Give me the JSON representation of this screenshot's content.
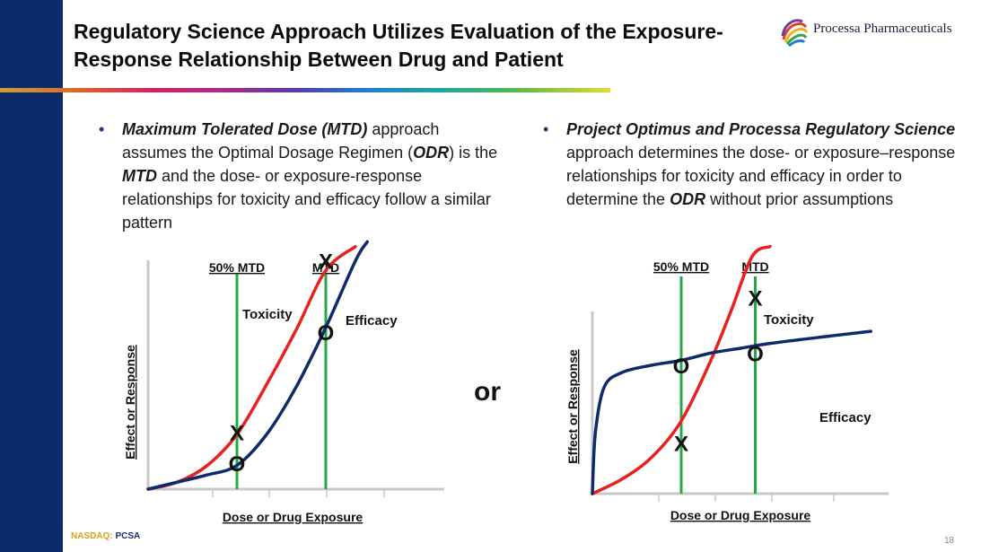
{
  "slide": {
    "title_line1": "Regulatory Science Approach Utilizes Evaluation of the Exposure-",
    "title_line2": "Response Relationship Between Drug and Patient",
    "logo_text": "Processa Pharmaceuticals",
    "or_label": "or",
    "page_number": "18",
    "footer": {
      "exchange": "NASDAQ:",
      "ticker": "PCSA"
    }
  },
  "colors": {
    "navy": "#0d2a6b",
    "toxicity": "#e8201e",
    "efficacy": "#0d2a6b",
    "marker_line": "#22a845"
  },
  "left_bullet": {
    "p1": "Maximum Tolerated Dose (MTD)",
    "p2": " approach assumes the Optimal Dosage Regimen (",
    "p3": "ODR",
    "p4": ") is the ",
    "p5": "MTD",
    "p6": " and the dose- or exposure-response relationships for toxicity and efficacy follow a similar pattern"
  },
  "right_bullet": {
    "p1": "Project Optimus and Processa Regulatory Science",
    "p2": " approach determines the dose- or exposure–response relationships for toxicity and efficacy in order to determine the ",
    "p3": "ODR",
    "p4": " without prior assumptions"
  },
  "chart_data": [
    {
      "type": "line",
      "title": "",
      "xlabel": "Dose or Drug Exposure",
      "ylabel": "Effect or Response",
      "x_range": [
        0,
        10
      ],
      "y_range": [
        0,
        10
      ],
      "series": [
        {
          "name": "Toxicity",
          "x": [
            0,
            1,
            2,
            3,
            4,
            5,
            6,
            7
          ],
          "y": [
            0,
            0.3,
            1.0,
            2.3,
            4.4,
            6.7,
            9.2,
            10.2
          ]
        },
        {
          "name": "Efficacy",
          "x": [
            0,
            1,
            2,
            3,
            4,
            5,
            6,
            7,
            7.4
          ],
          "y": [
            0,
            0.3,
            0.6,
            1.0,
            2.3,
            4.3,
            6.8,
            9.6,
            10.4
          ]
        }
      ],
      "markers": [
        {
          "label": "50% MTD",
          "x": 3
        },
        {
          "label": "MTD",
          "x": 6
        }
      ],
      "points": [
        {
          "symbol": "X",
          "x": 3,
          "y": 2.4
        },
        {
          "symbol": "O",
          "x": 3,
          "y": 1.1
        },
        {
          "symbol": "X",
          "x": 6,
          "y": 9.6
        },
        {
          "symbol": "O",
          "x": 6,
          "y": 6.6
        }
      ],
      "annotations": [
        "Toxicity",
        "Efficacy"
      ]
    },
    {
      "type": "line",
      "title": "",
      "xlabel": "Dose or Drug Exposure",
      "ylabel": "Effect or Response",
      "x_range": [
        0,
        10
      ],
      "y_range": [
        0,
        10
      ],
      "series": [
        {
          "name": "Toxicity",
          "x": [
            0,
            1,
            2,
            3,
            4,
            4.7,
            5.4,
            6
          ],
          "y": [
            0,
            0.6,
            1.5,
            3.0,
            5.5,
            7.6,
            9.8,
            10.2
          ]
        },
        {
          "name": "Efficacy",
          "x": [
            0,
            0.1,
            0.4,
            1,
            2,
            3,
            4,
            5,
            6,
            8,
            9.4
          ],
          "y": [
            0,
            2.5,
            4.4,
            5.0,
            5.3,
            5.5,
            5.8,
            6.0,
            6.2,
            6.5,
            6.7
          ]
        }
      ],
      "markers": [
        {
          "label": "50% MTD",
          "x": 3
        },
        {
          "label": "MTD",
          "x": 5.5
        }
      ],
      "points": [
        {
          "symbol": "O",
          "x": 3,
          "y": 5.3
        },
        {
          "symbol": "X",
          "x": 3,
          "y": 2.1
        },
        {
          "symbol": "X",
          "x": 5.5,
          "y": 8.1
        },
        {
          "symbol": "O",
          "x": 5.5,
          "y": 5.8
        }
      ],
      "annotations": [
        "Toxicity",
        "Efficacy"
      ]
    }
  ]
}
